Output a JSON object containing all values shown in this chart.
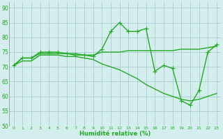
{
  "title": "",
  "xlabel": "Humidité relative (%)",
  "ylabel": "",
  "background_color": "#d4eeee",
  "grid_color": "#aacccc",
  "line_color": "#22aa22",
  "xlim": [
    -0.5,
    23.5
  ],
  "ylim": [
    50,
    92
  ],
  "yticks": [
    50,
    55,
    60,
    65,
    70,
    75,
    80,
    85,
    90
  ],
  "xticks": [
    0,
    1,
    2,
    3,
    4,
    5,
    6,
    7,
    8,
    9,
    10,
    11,
    12,
    13,
    14,
    15,
    16,
    17,
    18,
    19,
    20,
    21,
    22,
    23
  ],
  "series": [
    {
      "x": [
        0,
        1,
        2,
        3,
        4,
        5,
        6,
        7,
        8,
        9,
        10,
        11,
        12,
        13,
        14,
        15,
        16,
        17,
        18,
        19,
        20,
        21,
        22,
        23
      ],
      "y": [
        70.5,
        73,
        73,
        75,
        75,
        75,
        74.5,
        74,
        74,
        73.5,
        76,
        82,
        85,
        82,
        82,
        83,
        68.5,
        70.5,
        69.5,
        58.5,
        57,
        62,
        75,
        77.5
      ],
      "marker": "+",
      "markersize": 4,
      "linewidth": 1.0
    },
    {
      "x": [
        0,
        1,
        2,
        3,
        4,
        5,
        6,
        7,
        8,
        9,
        10,
        11,
        12,
        13,
        14,
        15,
        16,
        17,
        18,
        19,
        20,
        21,
        22,
        23
      ],
      "y": [
        70.5,
        73,
        73,
        74.5,
        74.5,
        74.5,
        74.5,
        74.5,
        74,
        74,
        75,
        75,
        75,
        75.5,
        75.5,
        75.5,
        75.5,
        75.5,
        75.5,
        76,
        76,
        76,
        76.5,
        77
      ],
      "marker": null,
      "linewidth": 1.0
    },
    {
      "x": [
        0,
        1,
        2,
        3,
        4,
        5,
        6,
        7,
        8,
        9,
        10,
        11,
        12,
        13,
        14,
        15,
        16,
        17,
        18,
        19,
        20,
        21,
        22,
        23
      ],
      "y": [
        70.5,
        72,
        72,
        74,
        74,
        74,
        73.5,
        73.5,
        73,
        72.5,
        71,
        70,
        69,
        67.5,
        66,
        64,
        62.5,
        61,
        60,
        59,
        58.5,
        59,
        60,
        61
      ],
      "marker": null,
      "linewidth": 1.0
    }
  ]
}
